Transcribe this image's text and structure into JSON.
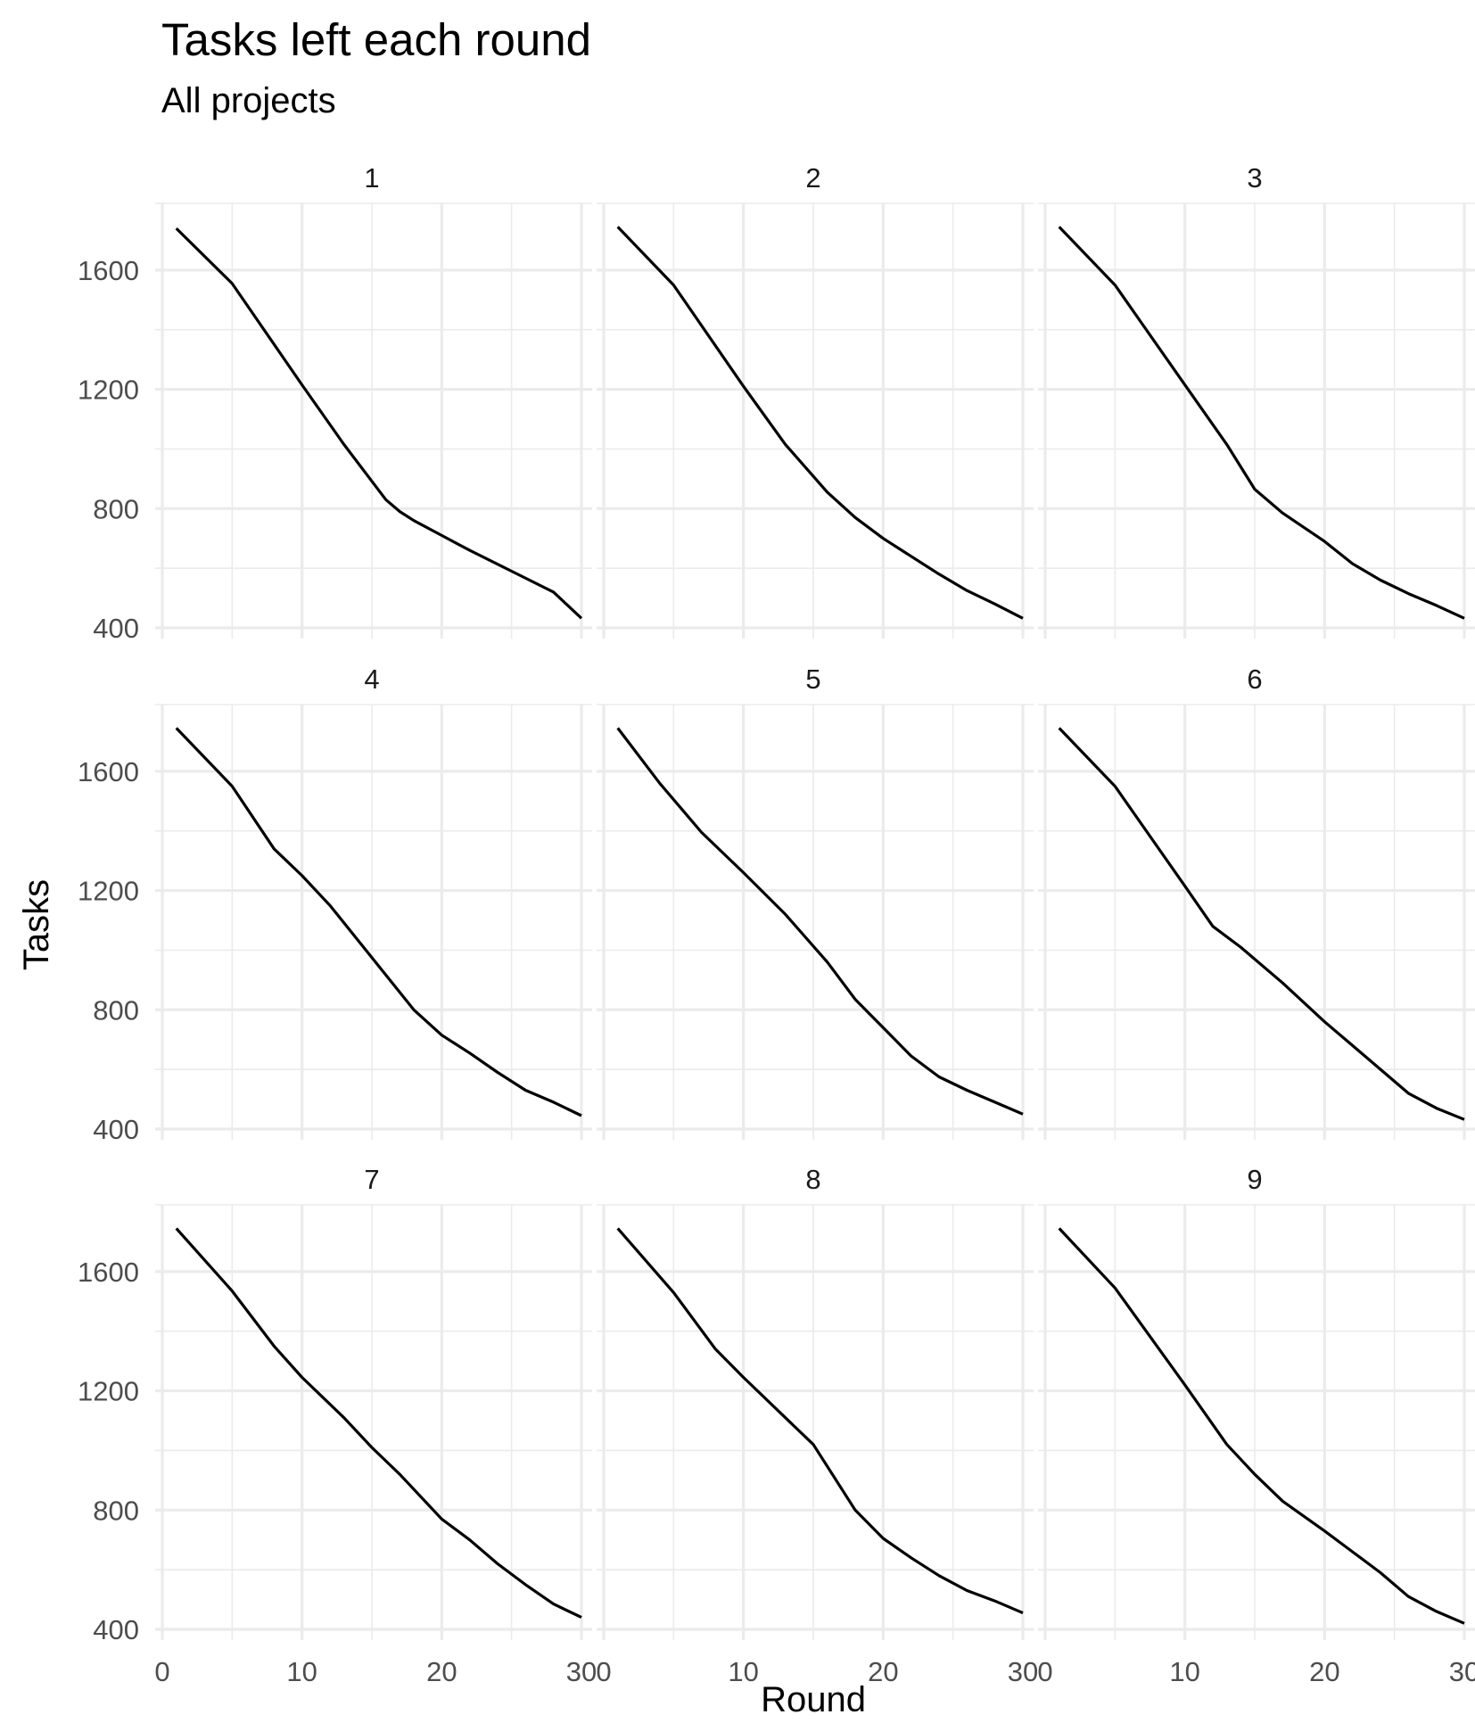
{
  "chart_data": {
    "type": "line",
    "title": "Tasks left each round",
    "subtitle": "All projects",
    "xlabel": "Round",
    "ylabel": "Tasks",
    "xlim": [
      0,
      30
    ],
    "ylim": [
      400,
      1800
    ],
    "x_ticks": [
      0,
      10,
      20,
      30
    ],
    "y_ticks": [
      400,
      800,
      1200,
      1600
    ],
    "grid": true,
    "legend": "none",
    "line_color": "#000000",
    "facets": [
      {
        "name": "1",
        "x": [
          1,
          5,
          10,
          13,
          16,
          17,
          18,
          20,
          22,
          25,
          28,
          30
        ],
        "y": [
          1740,
          1555,
          1215,
          1015,
          830,
          790,
          760,
          710,
          660,
          590,
          520,
          432
        ]
      },
      {
        "name": "2",
        "x": [
          1,
          5,
          10,
          13,
          16,
          18,
          20,
          22,
          24,
          26,
          28,
          30
        ],
        "y": [
          1745,
          1550,
          1210,
          1015,
          855,
          770,
          700,
          640,
          580,
          525,
          480,
          432
        ]
      },
      {
        "name": "3",
        "x": [
          1,
          5,
          10,
          13,
          15,
          17,
          20,
          22,
          24,
          26,
          28,
          30
        ],
        "y": [
          1745,
          1550,
          1215,
          1015,
          865,
          785,
          690,
          615,
          560,
          515,
          475,
          432
        ]
      },
      {
        "name": "4",
        "x": [
          1,
          5,
          8,
          10,
          12,
          15,
          18,
          20,
          22,
          24,
          26,
          28,
          30
        ],
        "y": [
          1745,
          1550,
          1340,
          1250,
          1150,
          975,
          800,
          715,
          655,
          590,
          530,
          490,
          445
        ]
      },
      {
        "name": "5",
        "x": [
          1,
          4,
          7,
          10,
          13,
          16,
          18,
          20,
          22,
          24,
          26,
          28,
          30
        ],
        "y": [
          1745,
          1560,
          1395,
          1260,
          1120,
          960,
          835,
          740,
          645,
          575,
          530,
          490,
          450
        ]
      },
      {
        "name": "6",
        "x": [
          1,
          5,
          10,
          12,
          14,
          17,
          20,
          22,
          24,
          26,
          28,
          30
        ],
        "y": [
          1745,
          1550,
          1215,
          1080,
          1010,
          890,
          760,
          680,
          600,
          520,
          470,
          432
        ]
      },
      {
        "name": "7",
        "x": [
          1,
          5,
          8,
          10,
          13,
          15,
          17,
          20,
          22,
          24,
          26,
          28,
          30
        ],
        "y": [
          1745,
          1535,
          1350,
          1245,
          1110,
          1010,
          920,
          770,
          700,
          620,
          550,
          485,
          440
        ]
      },
      {
        "name": "8",
        "x": [
          1,
          5,
          8,
          10,
          13,
          15,
          18,
          20,
          22,
          24,
          26,
          28,
          30
        ],
        "y": [
          1745,
          1530,
          1340,
          1245,
          1110,
          1020,
          800,
          705,
          640,
          580,
          530,
          495,
          455
        ]
      },
      {
        "name": "9",
        "x": [
          1,
          5,
          10,
          13,
          15,
          17,
          20,
          22,
          24,
          26,
          28,
          30
        ],
        "y": [
          1745,
          1545,
          1220,
          1020,
          920,
          830,
          730,
          660,
          590,
          510,
          460,
          420
        ]
      }
    ]
  }
}
